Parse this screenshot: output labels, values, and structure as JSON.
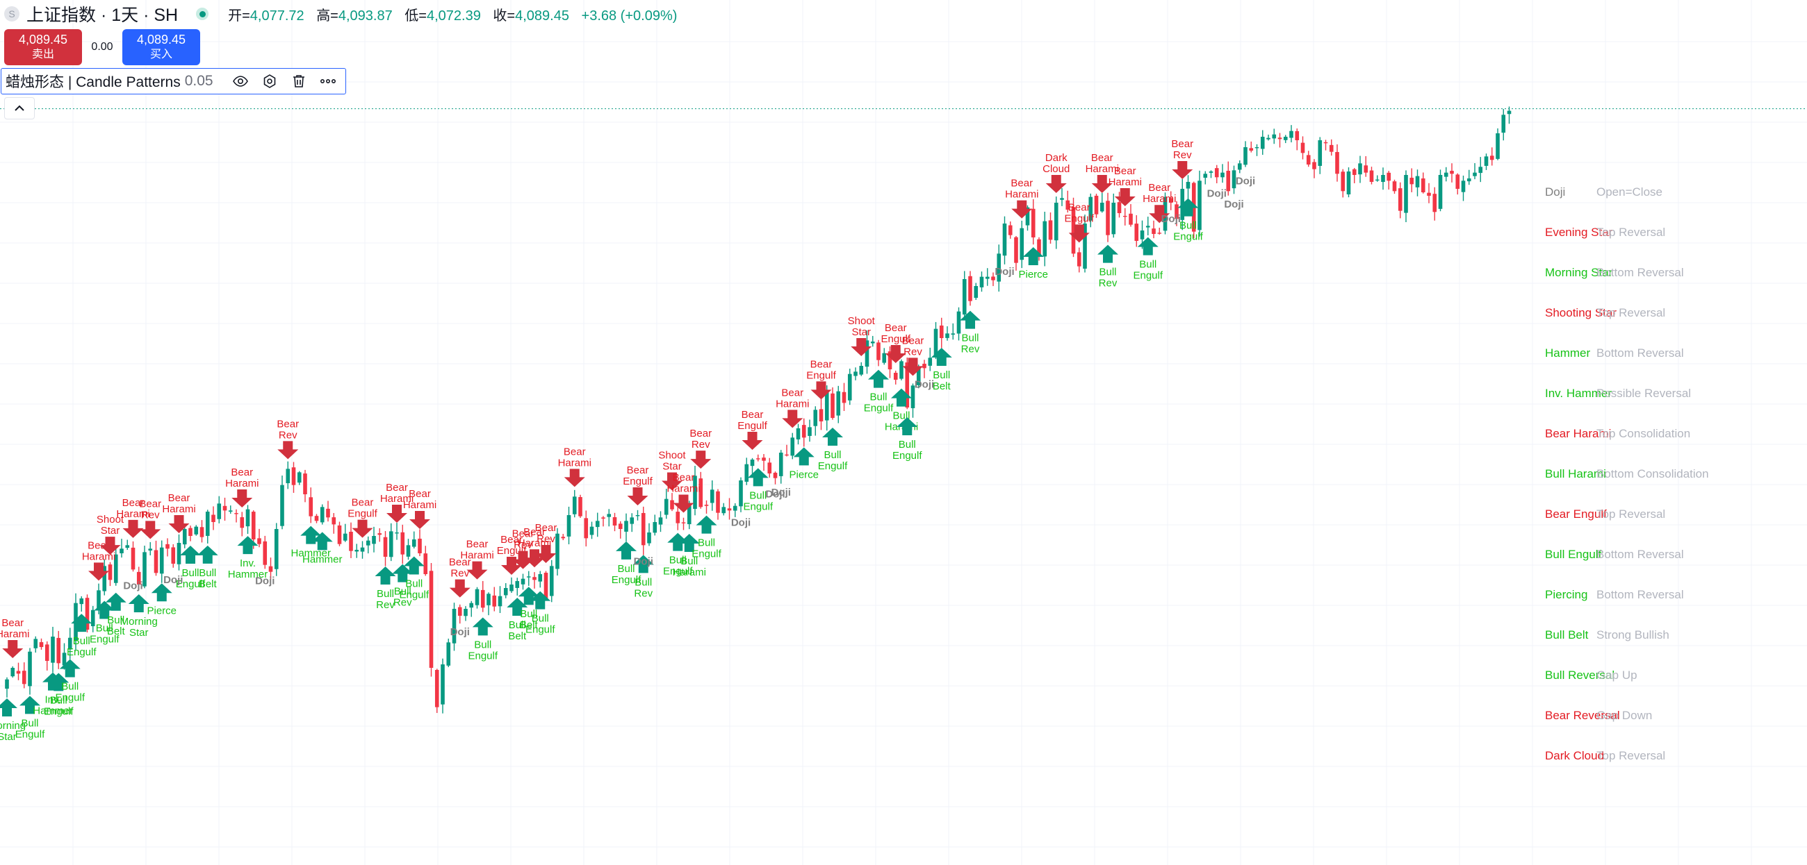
{
  "header": {
    "title": "上证指数 · 1天 · SH",
    "open_label": "开=",
    "open": "4,077.72",
    "high_label": "高=",
    "high": "4,093.87",
    "low_label": "低=",
    "low": "4,072.39",
    "close_label": "收=",
    "close": "4,089.45",
    "change": "+3.68 (+0.09%)"
  },
  "trade": {
    "sell_price": "4,089.45",
    "sell_label": "卖出",
    "spread": "0.00",
    "buy_price": "4,089.45",
    "buy_label": "买入"
  },
  "indicator": {
    "name": "蜡烛形态 | Candle Patterns",
    "value": "0.05",
    "icons": [
      "eye-icon",
      "settings-icon",
      "trash-icon",
      "more-icon"
    ]
  },
  "colors": {
    "up": "#089981",
    "down": "#f23645",
    "bear_label": "#e31b23",
    "bull_label": "#17c217",
    "doji_label": "#808080",
    "legend_desc": "#b2b5be",
    "grid": "#f0f3fa",
    "price_line": "#089981"
  },
  "chart_data": {
    "type": "candlestick",
    "symbol": "上证指数",
    "interval": "1天",
    "y_range": [
      3515,
      4115
    ],
    "last_close": 4089.45,
    "closes": [
      3598,
      3608,
      3603,
      3594,
      3622,
      3633,
      3626,
      3614,
      3635,
      3612,
      3621,
      3634,
      3664,
      3668,
      3641,
      3658,
      3675,
      3696,
      3684,
      3706,
      3711,
      3714,
      3693,
      3680,
      3708,
      3711,
      3690,
      3712,
      3711,
      3698,
      3716,
      3728,
      3722,
      3730,
      3721,
      3743,
      3734,
      3750,
      3744,
      3744,
      3741,
      3729,
      3745,
      3719,
      3715,
      3697,
      3691,
      3728,
      3766,
      3780,
      3766,
      3777,
      3758,
      3739,
      3735,
      3747,
      3738,
      3732,
      3715,
      3724,
      3709,
      3710,
      3712,
      3718,
      3722,
      3723,
      3704,
      3726,
      3725,
      3706,
      3714,
      3719,
      3707,
      3689,
      3608,
      3574,
      3611,
      3630,
      3659,
      3653,
      3659,
      3664,
      3676,
      3660,
      3672,
      3661,
      3670,
      3677,
      3680,
      3683,
      3685,
      3687,
      3684,
      3689,
      3668,
      3696,
      3724,
      3720,
      3740,
      3756,
      3739,
      3720,
      3730,
      3735,
      3737,
      3741,
      3731,
      3728,
      3735,
      3738,
      3740,
      3714,
      3725,
      3734,
      3738,
      3754,
      3745,
      3733,
      3733,
      3748,
      3774,
      3747,
      3748,
      3762,
      3742,
      3747,
      3744,
      3748,
      3770,
      3784,
      3788,
      3789,
      3787,
      3776,
      3772,
      3794,
      3792,
      3807,
      3815,
      3807,
      3816,
      3831,
      3821,
      3846,
      3824,
      3847,
      3837,
      3862,
      3864,
      3869,
      3891,
      3890,
      3874,
      3880,
      3866,
      3857,
      3873,
      3833,
      3852,
      3868,
      3867,
      3876,
      3901,
      3893,
      3897,
      3897,
      3916,
      3944,
      3925,
      3938,
      3946,
      3946,
      3943,
      3966,
      3992,
      3982,
      3958,
      3988,
      4006,
      3980,
      3965,
      3994,
      3978,
      4010,
      4014,
      4004,
      3966,
      3955,
      3992,
      4015,
      4000,
      4010,
      3982,
      4010,
      4001,
      3998,
      3991,
      3977,
      3986,
      3990,
      3983,
      3984,
      4015,
      4010,
      3996,
      4022,
      4028,
      3985,
      4029,
      4035,
      4037,
      4032,
      4036,
      4020,
      4038,
      4044,
      4058,
      4055,
      4058,
      4067,
      4066,
      4069,
      4065,
      4067,
      4072,
      4064,
      4053,
      4043,
      4039,
      4064,
      4062,
      4054,
      4035,
      4020,
      4037,
      4034,
      4044,
      4036,
      4028,
      4030,
      4034,
      4029,
      4020,
      4003,
      4034,
      4026,
      4033,
      4019,
      4016,
      4002,
      4034,
      4036,
      4035,
      4022,
      4029,
      4031,
      4036,
      4041,
      4050,
      4047,
      4070,
      4086,
      4089.45
    ],
    "patterns_on_chart": [
      {
        "i": 0,
        "label": "Morning Star",
        "bull": true
      },
      {
        "i": 1,
        "label": "Bear Harami",
        "bull": false
      },
      {
        "i": 4,
        "label": "Bull Engulf",
        "bull": true
      },
      {
        "i": 8,
        "label": "Inv. Hammer",
        "bull": true
      },
      {
        "i": 9,
        "label": "Bull Engulf",
        "bull": true
      },
      {
        "i": 11,
        "label": "Bull Engulf",
        "bull": true
      },
      {
        "i": 13,
        "label": "Bull Engulf",
        "bull": true
      },
      {
        "i": 16,
        "label": "Bear Harami",
        "bull": false
      },
      {
        "i": 17,
        "label": "Bull Engulf",
        "bull": true
      },
      {
        "i": 18,
        "label": "Shoot Star",
        "bull": false
      },
      {
        "i": 19,
        "label": "Bull Belt",
        "bull": true
      },
      {
        "i": 22,
        "label": "Bear Harami",
        "bull": false
      },
      {
        "i": 23,
        "label": "Morning Star",
        "bull": true
      },
      {
        "i": 25,
        "label": "Bear Rev",
        "bull": false
      },
      {
        "i": 27,
        "label": "Pierce",
        "bull": true
      },
      {
        "i": 30,
        "label": "Bear Harami",
        "bull": false
      },
      {
        "i": 32,
        "label": "Bull Engulf",
        "bull": true
      },
      {
        "i": 35,
        "label": "Bull Belt",
        "bull": true
      },
      {
        "i": 41,
        "label": "Bear Harami",
        "bull": false
      },
      {
        "i": 42,
        "label": "Inv. Hammer",
        "bull": true
      },
      {
        "i": 49,
        "label": "Bear Rev",
        "bull": false
      },
      {
        "i": 53,
        "label": "Hammer",
        "bull": true
      },
      {
        "i": 55,
        "label": "Hammer",
        "bull": true
      },
      {
        "i": 62,
        "label": "Bear Engulf",
        "bull": false
      },
      {
        "i": 66,
        "label": "Bull Rev",
        "bull": true
      },
      {
        "i": 68,
        "label": "Bear Harami",
        "bull": false
      },
      {
        "i": 69,
        "label": "Bull Rev",
        "bull": true
      },
      {
        "i": 71,
        "label": "Bull Engulf",
        "bull": true
      },
      {
        "i": 72,
        "label": "Bear Harami",
        "bull": false
      },
      {
        "i": 79,
        "label": "Bear Rev",
        "bull": false
      },
      {
        "i": 82,
        "label": "Bear Harami",
        "bull": false
      },
      {
        "i": 83,
        "label": "Bull Engulf",
        "bull": true
      },
      {
        "i": 88,
        "label": "Bear Engulf",
        "bull": false
      },
      {
        "i": 89,
        "label": "Bull Belt",
        "bull": true
      },
      {
        "i": 90,
        "label": "Bear Rev",
        "bull": false
      },
      {
        "i": 91,
        "label": "Bull Belt",
        "bull": true
      },
      {
        "i": 92,
        "label": "Bear Harami",
        "bull": false
      },
      {
        "i": 93,
        "label": "Bull Engulf",
        "bull": true
      },
      {
        "i": 94,
        "label": "Bear Rev",
        "bull": false
      },
      {
        "i": 99,
        "label": "Bear Harami",
        "bull": false
      },
      {
        "i": 108,
        "label": "Bull Engulf",
        "bull": true
      },
      {
        "i": 110,
        "label": "Bear Engulf",
        "bull": false
      },
      {
        "i": 111,
        "label": "Bull Rev",
        "bull": true
      },
      {
        "i": 116,
        "label": "Shoot Star",
        "bull": false
      },
      {
        "i": 117,
        "label": "Bull Engulf",
        "bull": true
      },
      {
        "i": 118,
        "label": "Bear Harami",
        "bull": false
      },
      {
        "i": 119,
        "label": "Bull Harami",
        "bull": true
      },
      {
        "i": 121,
        "label": "Bear Rev",
        "bull": false
      },
      {
        "i": 122,
        "label": "Bull Engulf",
        "bull": true
      },
      {
        "i": 130,
        "label": "Bear Engulf",
        "bull": false
      },
      {
        "i": 131,
        "label": "Bull Engulf",
        "bull": true
      },
      {
        "i": 137,
        "label": "Bear Harami",
        "bull": false
      },
      {
        "i": 139,
        "label": "Pierce",
        "bull": true
      },
      {
        "i": 142,
        "label": "Bear Engulf",
        "bull": false
      },
      {
        "i": 144,
        "label": "Bull Engulf",
        "bull": true
      },
      {
        "i": 149,
        "label": "Shoot Star",
        "bull": false
      },
      {
        "i": 152,
        "label": "Bull Engulf",
        "bull": true
      },
      {
        "i": 155,
        "label": "Bear Engulf",
        "bull": false
      },
      {
        "i": 156,
        "label": "Bull Harami",
        "bull": true
      },
      {
        "i": 157,
        "label": "Bull Engulf",
        "bull": true
      },
      {
        "i": 158,
        "label": "Bear Rev",
        "bull": false
      },
      {
        "i": 163,
        "label": "Bull Belt",
        "bull": true
      },
      {
        "i": 168,
        "label": "Bull Rev",
        "bull": true
      },
      {
        "i": 177,
        "label": "Bear Harami",
        "bull": false
      },
      {
        "i": 179,
        "label": "Pierce",
        "bull": true
      },
      {
        "i": 183,
        "label": "Dark Cloud",
        "bull": false
      },
      {
        "i": 187,
        "label": "Bear Engulf",
        "bull": false
      },
      {
        "i": 191,
        "label": "Bear Harami",
        "bull": false
      },
      {
        "i": 192,
        "label": "Bull Rev",
        "bull": true
      },
      {
        "i": 195,
        "label": "Bear Harami",
        "bull": false
      },
      {
        "i": 199,
        "label": "Bull Engulf",
        "bull": true
      },
      {
        "i": 201,
        "label": "Bear Harami",
        "bull": false
      },
      {
        "i": 205,
        "label": "Bear Rev",
        "bull": false
      },
      {
        "i": 206,
        "label": "Bull Engulf",
        "bull": true
      }
    ],
    "doji_marks": [
      22,
      29,
      45,
      79,
      111,
      128,
      134,
      135,
      160,
      174,
      203,
      211,
      214,
      216
    ]
  },
  "legend": [
    {
      "name": "Doji",
      "desc": "Open=Close",
      "kind": "neutral"
    },
    {
      "name": "Evening Star",
      "desc": "Top Reversal",
      "kind": "bear"
    },
    {
      "name": "Morning Star",
      "desc": "Bottom Reversal",
      "kind": "bull"
    },
    {
      "name": "Shooting Star",
      "desc": "Top Reversal",
      "kind": "bear"
    },
    {
      "name": "Hammer",
      "desc": "Bottom Reversal",
      "kind": "bull"
    },
    {
      "name": "Inv. Hammer",
      "desc": "Possible Reversal",
      "kind": "bull"
    },
    {
      "name": "Bear Harami",
      "desc": "Top Consolidation",
      "kind": "bear"
    },
    {
      "name": "Bull Harami",
      "desc": "Bottom Consolidation",
      "kind": "bull"
    },
    {
      "name": "Bear Engulf",
      "desc": "Top Reversal",
      "kind": "bear"
    },
    {
      "name": "Bull Engulf",
      "desc": "Bottom Reversal",
      "kind": "bull"
    },
    {
      "name": "Piercing",
      "desc": "Bottom Reversal",
      "kind": "bull"
    },
    {
      "name": "Bull Belt",
      "desc": "Strong Bullish",
      "kind": "bull"
    },
    {
      "name": "Bull Reversal",
      "desc": "Gap Up",
      "kind": "bull"
    },
    {
      "name": "Bear Reversal",
      "desc": "Gap Down",
      "kind": "bear"
    },
    {
      "name": "Dark Cloud",
      "desc": "Top Reversal",
      "kind": "bear"
    }
  ]
}
